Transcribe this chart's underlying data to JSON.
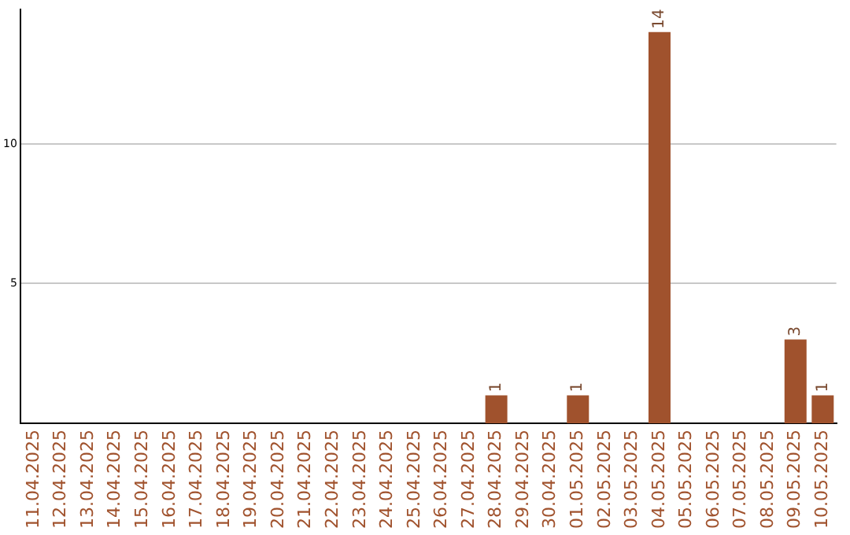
{
  "chart_data": {
    "type": "bar",
    "categories": [
      "11.04.2025",
      "12.04.2025",
      "13.04.2025",
      "14.04.2025",
      "15.04.2025",
      "16.04.2025",
      "17.04.2025",
      "18.04.2025",
      "19.04.2025",
      "20.04.2025",
      "21.04.2025",
      "22.04.2025",
      "23.04.2025",
      "24.04.2025",
      "25.04.2025",
      "26.04.2025",
      "27.04.2025",
      "28.04.2025",
      "29.04.2025",
      "30.04.2025",
      "01.05.2025",
      "02.05.2025",
      "03.05.2025",
      "04.05.2025",
      "05.05.2025",
      "06.05.2025",
      "07.05.2025",
      "08.05.2025",
      "09.05.2025",
      "10.05.2025"
    ],
    "values": [
      0,
      0,
      0,
      0,
      0,
      0,
      0,
      0,
      0,
      0,
      0,
      0,
      0,
      0,
      0,
      0,
      0,
      1,
      0,
      0,
      1,
      0,
      0,
      14,
      0,
      0,
      0,
      0,
      3,
      1
    ],
    "value_labels": [
      null,
      null,
      null,
      null,
      null,
      null,
      null,
      null,
      null,
      null,
      null,
      null,
      null,
      null,
      null,
      null,
      null,
      "1",
      null,
      null,
      "1",
      null,
      null,
      "14",
      null,
      null,
      null,
      null,
      "3",
      "1"
    ],
    "color": "#a0522d",
    "ylim": [
      0,
      14.8
    ],
    "yticks": [
      5,
      10
    ],
    "grid": "y",
    "legend": false
  }
}
